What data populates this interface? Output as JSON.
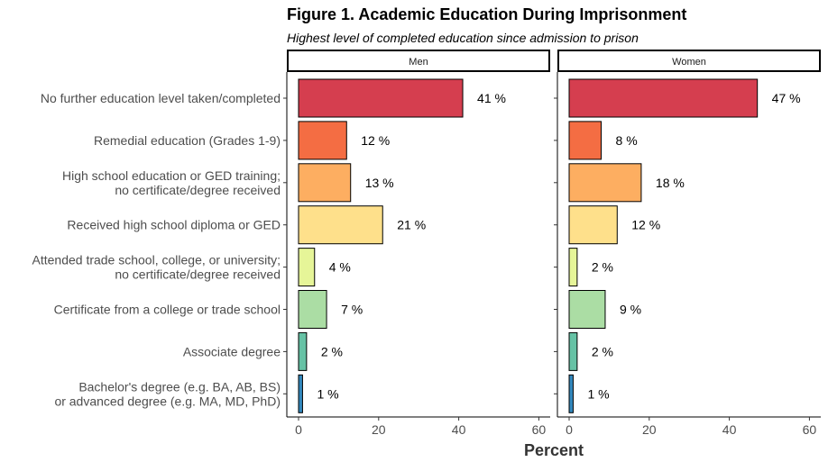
{
  "chart_data": {
    "type": "bar",
    "orientation": "horizontal",
    "title": "Figure 1. Academic Education During Imprisonment",
    "subtitle": "Highest level of completed education since admission to prison",
    "xlabel": "Percent",
    "ylabel": "",
    "xlim": [
      0,
      60
    ],
    "xticks": [
      0,
      20,
      40,
      60
    ],
    "value_suffix": " %",
    "categories": [
      "No further education level taken/completed",
      "Remedial education (Grades 1-9)",
      "High school education or GED training;\nno certificate/degree received",
      "Received high school diploma or GED",
      "Attended trade school, college, or university;\nno certificate/degree received",
      "Certificate from a college or trade school",
      "Associate degree",
      "Bachelor's degree (e.g. BA, AB, BS)\nor advanced degree (e.g. MA, MD, PhD)"
    ],
    "colors": [
      "#d53e4f",
      "#f46d43",
      "#fdae61",
      "#fee08b",
      "#e6f598",
      "#abdda4",
      "#66c2a5",
      "#3288bd"
    ],
    "panels": [
      {
        "name": "Men",
        "values": [
          41,
          12,
          13,
          21,
          4,
          7,
          2,
          1
        ]
      },
      {
        "name": "Women",
        "values": [
          47,
          8,
          18,
          12,
          2,
          9,
          2,
          1
        ]
      }
    ],
    "grid": false,
    "legend": "none"
  }
}
